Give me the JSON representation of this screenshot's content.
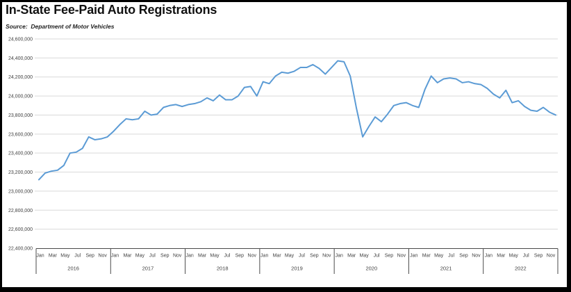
{
  "window": {
    "background": "#FFFFFF",
    "frame_color": "#000000"
  },
  "header": {
    "title": "In-State Fee-Paid Auto Registrations",
    "source": "Source:  Department of Motor Vehicles"
  },
  "chart_data": {
    "type": "line",
    "title": "In-State Fee-Paid Auto Registrations",
    "xlabel": "",
    "ylabel": "",
    "legend_position": "none",
    "grid": true,
    "colors": {
      "line": "#5B9BD5",
      "gridline": "#D9D9D9",
      "axis": "#4a4a4a",
      "labels": "#404040"
    },
    "y_axis": {
      "min": 22400000,
      "max": 24600000,
      "step": 200000,
      "tick_labels": [
        "24,600,000",
        "24,400,000",
        "24,200,000",
        "24,000,000",
        "23,800,000",
        "23,600,000",
        "23,400,000",
        "23,200,000",
        "23,000,000",
        "22,800,000",
        "22,600,000",
        "22,400,000"
      ]
    },
    "x_axis": {
      "frequency": "monthly",
      "start": "2016-01",
      "end": "2022-12",
      "years": [
        "2016",
        "2017",
        "2018",
        "2019",
        "2020",
        "2021",
        "2022"
      ],
      "month_tick_labels": [
        "Jan",
        "Mar",
        "May",
        "Jul",
        "Sep",
        "Nov"
      ]
    },
    "series": [
      {
        "name": "In-State Fee-Paid Auto Registrations",
        "values": [
          23120000,
          23190000,
          23210000,
          23220000,
          23270000,
          23400000,
          23410000,
          23450000,
          23570000,
          23540000,
          23550000,
          23570000,
          23630000,
          23700000,
          23760000,
          23750000,
          23760000,
          23840000,
          23800000,
          23810000,
          23880000,
          23900000,
          23910000,
          23890000,
          23910000,
          23920000,
          23940000,
          23980000,
          23950000,
          24010000,
          23960000,
          23960000,
          24000000,
          24090000,
          24100000,
          24000000,
          24150000,
          24130000,
          24210000,
          24250000,
          24240000,
          24260000,
          24300000,
          24300000,
          24330000,
          24290000,
          24230000,
          24300000,
          24370000,
          24360000,
          24210000,
          23870000,
          23570000,
          23680000,
          23780000,
          23730000,
          23810000,
          23900000,
          23920000,
          23930000,
          23900000,
          23880000,
          24070000,
          24210000,
          24140000,
          24180000,
          24190000,
          24180000,
          24140000,
          24150000,
          24130000,
          24120000,
          24080000,
          24020000,
          23980000,
          24060000,
          23930000,
          23950000,
          23890000,
          23850000,
          23840000,
          23880000,
          23830000,
          23800000
        ]
      }
    ]
  }
}
